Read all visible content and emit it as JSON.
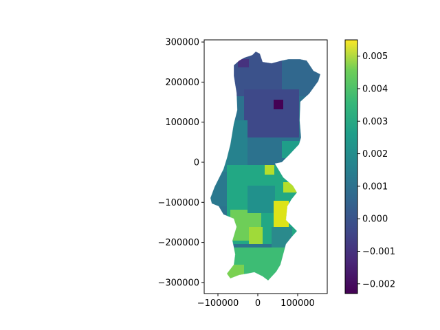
{
  "map": {
    "type": "choropleth",
    "region": "Portugal (mainland municipalities)",
    "x_axis": {
      "ticks": [
        -100000,
        0,
        100000
      ],
      "labels": [
        "−100000",
        "0",
        "100000"
      ],
      "range": [
        -125000,
        172000
      ]
    },
    "y_axis": {
      "ticks": [
        -300000,
        -200000,
        -100000,
        0,
        100000,
        200000,
        300000
      ],
      "labels": [
        "−300000",
        "−200000",
        "−100000",
        "0",
        "100000",
        "200000",
        "300000"
      ],
      "range": [
        -330000,
        305000
      ]
    }
  },
  "colorbar": {
    "colormap": "viridis",
    "range": [
      -0.0023,
      0.0055
    ],
    "ticks": [
      -0.002,
      -0.001,
      0.0,
      0.001,
      0.002,
      0.003,
      0.004,
      0.005
    ],
    "labels": [
      "−0.002",
      "−0.001",
      "0.000",
      "0.001",
      "0.002",
      "0.003",
      "0.004",
      "0.005"
    ]
  },
  "colors": {
    "viridis_low": "#440154",
    "viridis_mid": "#21918c",
    "viridis_high": "#fde725"
  }
}
